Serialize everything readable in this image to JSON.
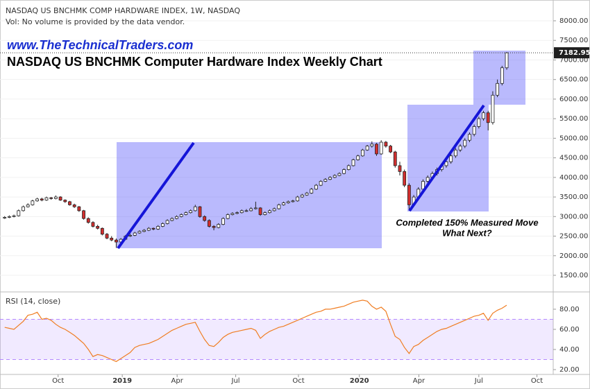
{
  "chart_data": [
    {
      "type": "candlestick",
      "title": "NASDAQ US BNCHMK COMP HARDWARE INDEX, 1W, NASDAQ",
      "subtitle": "Vol: No volume is provided by the data vendor.",
      "watermark": "www.TheTechnicalTraders.com",
      "headline": "NASDAQ US BNCHMK Computer Hardware Index Weekly Chart",
      "annotations": [
        "Completed 150% Measured Move",
        "What Next?"
      ],
      "colors": {
        "up": "#ffffff",
        "down": "#d32f2f",
        "edge": "#222222"
      },
      "grid": true,
      "xlim": [
        -1,
        118
      ],
      "ylim": [
        1093,
        8531
      ],
      "yticks": [
        {
          "value": 1500,
          "label": "1500.00"
        },
        {
          "value": 2000,
          "label": "2000.00"
        },
        {
          "value": 2500,
          "label": "2500.00"
        },
        {
          "value": 3000,
          "label": "3000.00"
        },
        {
          "value": 3500,
          "label": "3500.00"
        },
        {
          "value": 4000,
          "label": "4000.00"
        },
        {
          "value": 4500,
          "label": "4500.00"
        },
        {
          "value": 5000,
          "label": "5000.00"
        },
        {
          "value": 5500,
          "label": "5500.00"
        },
        {
          "value": 6000,
          "label": "6000.00"
        },
        {
          "value": 6500,
          "label": "6500.00"
        },
        {
          "value": 7000,
          "label": "7000.00"
        },
        {
          "value": 7500,
          "label": "7500.00"
        },
        {
          "value": 8000,
          "label": "8000.00"
        }
      ],
      "ohlc": [
        [
          2960,
          3010,
          2940,
          2980
        ],
        [
          2980,
          3030,
          2960,
          3000
        ],
        [
          3000,
          3050,
          2980,
          3020
        ],
        [
          3020,
          3180,
          3000,
          3150
        ],
        [
          3150,
          3280,
          3130,
          3250
        ],
        [
          3250,
          3340,
          3230,
          3300
        ],
        [
          3300,
          3430,
          3280,
          3400
        ],
        [
          3400,
          3480,
          3380,
          3450
        ],
        [
          3450,
          3480,
          3390,
          3420
        ],
        [
          3420,
          3510,
          3400,
          3480
        ],
        [
          3480,
          3500,
          3430,
          3460
        ],
        [
          3460,
          3540,
          3440,
          3500
        ],
        [
          3500,
          3520,
          3400,
          3420
        ],
        [
          3420,
          3440,
          3350,
          3380
        ],
        [
          3380,
          3400,
          3280,
          3300
        ],
        [
          3300,
          3330,
          3220,
          3250
        ],
        [
          3250,
          3270,
          3120,
          3150
        ],
        [
          3150,
          3170,
          2920,
          2950
        ],
        [
          2950,
          2980,
          2820,
          2850
        ],
        [
          2850,
          2880,
          2720,
          2750
        ],
        [
          2750,
          2790,
          2670,
          2700
        ],
        [
          2700,
          2720,
          2520,
          2550
        ],
        [
          2550,
          2580,
          2420,
          2450
        ],
        [
          2450,
          2500,
          2370,
          2400
        ],
        [
          2400,
          2440,
          2200,
          2350
        ],
        [
          2350,
          2450,
          2330,
          2420
        ],
        [
          2420,
          2530,
          2400,
          2500
        ],
        [
          2500,
          2560,
          2480,
          2520
        ],
        [
          2520,
          2610,
          2500,
          2580
        ],
        [
          2580,
          2650,
          2560,
          2620
        ],
        [
          2620,
          2680,
          2600,
          2650
        ],
        [
          2650,
          2730,
          2630,
          2700
        ],
        [
          2700,
          2720,
          2650,
          2680
        ],
        [
          2680,
          2780,
          2660,
          2750
        ],
        [
          2750,
          2850,
          2730,
          2820
        ],
        [
          2820,
          2930,
          2800,
          2900
        ],
        [
          2900,
          2980,
          2880,
          2950
        ],
        [
          2950,
          3030,
          2930,
          3000
        ],
        [
          3000,
          3080,
          2980,
          3050
        ],
        [
          3050,
          3130,
          3030,
          3100
        ],
        [
          3100,
          3180,
          3080,
          3150
        ],
        [
          3150,
          3300,
          3130,
          3250
        ],
        [
          3250,
          3270,
          2970,
          3000
        ],
        [
          3000,
          3030,
          2870,
          2900
        ],
        [
          2900,
          2930,
          2720,
          2750
        ],
        [
          2750,
          2780,
          2650,
          2720
        ],
        [
          2720,
          2830,
          2700,
          2800
        ],
        [
          2800,
          2980,
          2780,
          2950
        ],
        [
          2950,
          3080,
          2930,
          3050
        ],
        [
          3050,
          3110,
          3030,
          3080
        ],
        [
          3080,
          3130,
          3060,
          3100
        ],
        [
          3100,
          3180,
          3080,
          3150
        ],
        [
          3150,
          3190,
          3120,
          3150
        ],
        [
          3150,
          3240,
          3130,
          3200
        ],
        [
          3200,
          3380,
          3180,
          3220
        ],
        [
          3220,
          3240,
          3020,
          3050
        ],
        [
          3050,
          3130,
          3030,
          3100
        ],
        [
          3100,
          3180,
          3080,
          3150
        ],
        [
          3150,
          3230,
          3130,
          3200
        ],
        [
          3200,
          3330,
          3180,
          3300
        ],
        [
          3300,
          3380,
          3280,
          3350
        ],
        [
          3350,
          3410,
          3330,
          3380
        ],
        [
          3380,
          3430,
          3360,
          3400
        ],
        [
          3400,
          3530,
          3380,
          3500
        ],
        [
          3500,
          3580,
          3480,
          3550
        ],
        [
          3550,
          3630,
          3530,
          3600
        ],
        [
          3600,
          3730,
          3580,
          3700
        ],
        [
          3700,
          3830,
          3680,
          3800
        ],
        [
          3800,
          3930,
          3780,
          3900
        ],
        [
          3900,
          3980,
          3880,
          3950
        ],
        [
          3950,
          4030,
          3930,
          4000
        ],
        [
          4000,
          4080,
          3980,
          4050
        ],
        [
          4050,
          4130,
          4030,
          4100
        ],
        [
          4100,
          4230,
          4080,
          4200
        ],
        [
          4200,
          4330,
          4180,
          4300
        ],
        [
          4300,
          4480,
          4280,
          4450
        ],
        [
          4450,
          4580,
          4430,
          4550
        ],
        [
          4550,
          4730,
          4530,
          4700
        ],
        [
          4700,
          4830,
          4680,
          4800
        ],
        [
          4800,
          4920,
          4760,
          4850
        ],
        [
          4850,
          4880,
          4550,
          4600
        ],
        [
          4600,
          4950,
          4580,
          4900
        ],
        [
          4900,
          4930,
          4760,
          4800
        ],
        [
          4800,
          4830,
          4620,
          4650
        ],
        [
          4650,
          4680,
          4250,
          4300
        ],
        [
          4300,
          4400,
          4050,
          4150
        ],
        [
          4150,
          4200,
          3750,
          3800
        ],
        [
          3800,
          3850,
          3150,
          3300
        ],
        [
          3300,
          3550,
          3250,
          3500
        ],
        [
          3500,
          3750,
          3450,
          3700
        ],
        [
          3700,
          3950,
          3650,
          3900
        ],
        [
          3900,
          4050,
          3850,
          4000
        ],
        [
          4000,
          4150,
          3950,
          4100
        ],
        [
          4100,
          4250,
          4050,
          4200
        ],
        [
          4200,
          4350,
          4150,
          4300
        ],
        [
          4300,
          4450,
          4250,
          4400
        ],
        [
          4400,
          4600,
          4350,
          4550
        ],
        [
          4550,
          4750,
          4500,
          4700
        ],
        [
          4700,
          4850,
          4650,
          4800
        ],
        [
          4800,
          5000,
          4750,
          4950
        ],
        [
          4950,
          5150,
          4900,
          5100
        ],
        [
          5100,
          5350,
          5050,
          5300
        ],
        [
          5300,
          5550,
          5250,
          5500
        ],
        [
          5500,
          5700,
          5450,
          5650
        ],
        [
          5650,
          5700,
          5200,
          5400
        ],
        [
          5400,
          6200,
          5350,
          6100
        ],
        [
          6100,
          6500,
          6050,
          6400
        ],
        [
          6400,
          6850,
          6350,
          6800
        ],
        [
          6800,
          7200,
          6750,
          7182.95
        ]
      ]
    },
    {
      "type": "line",
      "title": "RSI (14, close)",
      "color": "#f07d22",
      "band_color": "#b388ff",
      "bands": [
        30,
        70
      ],
      "xlim": [
        -1,
        118
      ],
      "ylim": [
        15.2,
        96.5
      ],
      "yticks": [
        {
          "value": 20,
          "label": "20.00"
        },
        {
          "value": 40,
          "label": "40.00"
        },
        {
          "value": 60,
          "label": "60.00"
        },
        {
          "value": 80,
          "label": "80.00"
        }
      ],
      "xticks": [
        {
          "value": 11.5,
          "label": "Oct"
        },
        {
          "value": 25.3,
          "label": "2019"
        },
        {
          "value": 37.1,
          "label": "Apr"
        },
        {
          "value": 49.7,
          "label": "Jul"
        },
        {
          "value": 63.2,
          "label": "Oct"
        },
        {
          "value": 76.3,
          "label": "2020"
        },
        {
          "value": 89.1,
          "label": "Apr"
        },
        {
          "value": 102,
          "label": "Jul"
        },
        {
          "value": 114.5,
          "label": "Oct"
        }
      ],
      "values": [
        62,
        61,
        60,
        64,
        68,
        74,
        75,
        77,
        70,
        71,
        69,
        65,
        62,
        60,
        57,
        54,
        50,
        46,
        40,
        33,
        35,
        34,
        32,
        30,
        28,
        31,
        34,
        37,
        42,
        44,
        45,
        46,
        48,
        50,
        53,
        56,
        59,
        61,
        63,
        65,
        66,
        67,
        58,
        50,
        44,
        43,
        47,
        52,
        55,
        57,
        58,
        59,
        60,
        61,
        59,
        51,
        55,
        58,
        60,
        62,
        63,
        65,
        67,
        69,
        71,
        73,
        75,
        77,
        78,
        80,
        80,
        81,
        82,
        83,
        85,
        87,
        88,
        89,
        88,
        83,
        80,
        82,
        78,
        65,
        53,
        50,
        42,
        36,
        43,
        45,
        49,
        52,
        55,
        58,
        60,
        61,
        63,
        65,
        67,
        69,
        71,
        73,
        74,
        76,
        69,
        76,
        79,
        81,
        84
      ]
    }
  ]
}
